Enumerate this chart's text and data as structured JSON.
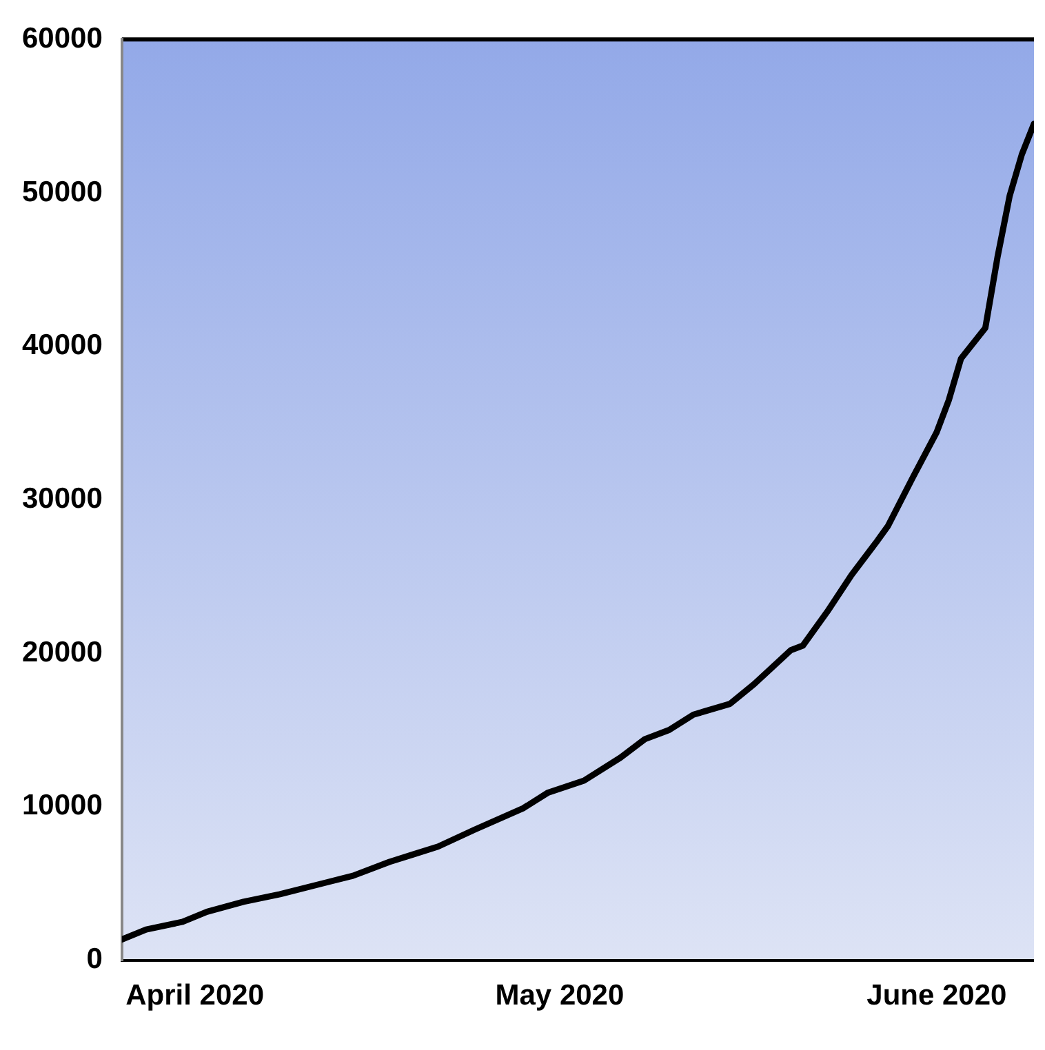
{
  "chart_data": {
    "type": "line",
    "x": [
      "2020-03-26",
      "2020-03-28",
      "2020-03-31",
      "2020-04-02",
      "2020-04-05",
      "2020-04-08",
      "2020-04-12",
      "2020-04-14",
      "2020-04-17",
      "2020-04-19",
      "2020-04-21",
      "2020-04-24",
      "2020-04-28",
      "2020-04-30",
      "2020-05-03",
      "2020-05-06",
      "2020-05-08",
      "2020-05-10",
      "2020-05-12",
      "2020-05-15",
      "2020-05-17",
      "2020-05-20",
      "2020-05-21",
      "2020-05-23",
      "2020-05-25",
      "2020-05-27",
      "2020-05-28",
      "2020-05-30",
      "2020-06-01",
      "2020-06-02",
      "2020-06-03",
      "2020-06-05",
      "2020-06-06",
      "2020-06-07",
      "2020-06-08",
      "2020-06-09"
    ],
    "series": [
      {
        "color": "#000000",
        "values": [
          1350,
          2000,
          2500,
          3150,
          3800,
          4300,
          5100,
          5500,
          6400,
          6900,
          7400,
          8500,
          9900,
          10900,
          11700,
          13200,
          14400,
          15000,
          16000,
          16700,
          18000,
          20200,
          20500,
          22700,
          25100,
          27200,
          28300,
          31400,
          34400,
          36500,
          39200,
          41200,
          45800,
          49800,
          52500,
          54500
        ]
      }
    ],
    "xlim": [
      "2020-03-26",
      "2020-06-09"
    ],
    "xticks": [
      {
        "value": "2020-04-01",
        "label": "April 2020"
      },
      {
        "value": "2020-05-01",
        "label": "May 2020"
      },
      {
        "value": "2020-06-01",
        "label": "June 2020"
      }
    ],
    "ylim": [
      0,
      60000
    ],
    "yticks": [
      0,
      10000,
      20000,
      30000,
      40000,
      50000,
      60000
    ],
    "grid": false,
    "legend": false,
    "marker": "none",
    "line_style": "solid"
  }
}
